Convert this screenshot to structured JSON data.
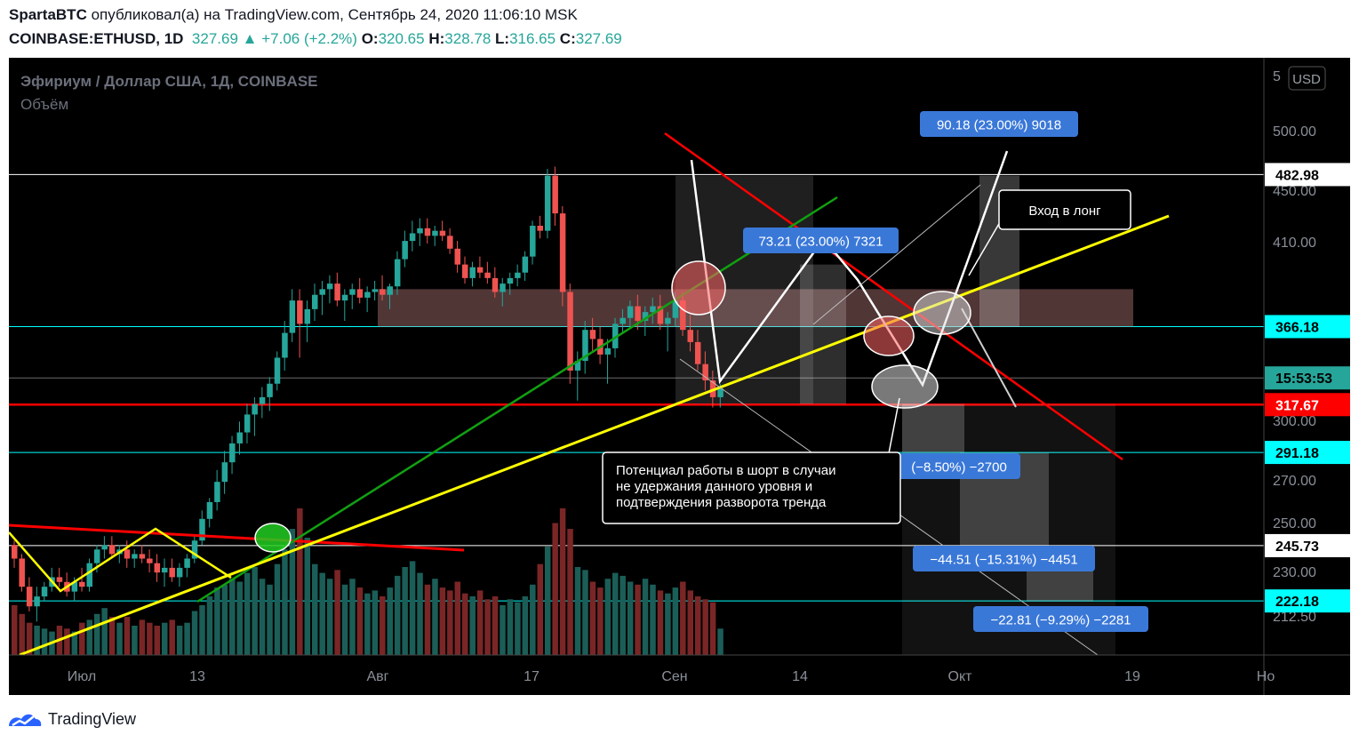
{
  "header": {
    "author": "SpartaBTC",
    "published_text": "опубликовал(а) на TradingView.com, Сентябрь 24, 2020 11:06:10 MSK",
    "symbol": "COINBASE:ETHUSD, 1D",
    "last": "327.69",
    "change_arrow": "▲",
    "change": "+7.06 (+2.2%)",
    "open_label": "O:",
    "open": "320.65",
    "high_label": "H:",
    "high": "328.78",
    "low_label": "L:",
    "low": "316.65",
    "close_label": "C:",
    "close": "327.69"
  },
  "chart_data": {
    "type": "candlestick",
    "title": "Эфириум / Доллар США, 1Д, COINBASE",
    "subtitle": "Объём",
    "currency_button": "USD",
    "y_scale": "log",
    "ylim": [
      202,
      560
    ],
    "y_ticks": [
      "5",
      "500.00",
      "450.00",
      "410.00",
      "300.00",
      "270.00",
      "250.00",
      "230.00",
      "212.50"
    ],
    "x_ticks": [
      "Июл",
      "13",
      "Авг",
      "17",
      "Сен",
      "14",
      "Окт",
      "19",
      "Но"
    ],
    "price_labels": [
      {
        "text": "482.98",
        "value": 482.98,
        "bg": "#ffffff",
        "fg": "#000000"
      },
      {
        "text": "366.18",
        "value": 366.18,
        "bg": "#00ffff",
        "fg": "#000000"
      },
      {
        "text": "15:53:53",
        "value": 333.5,
        "bg": "#26a69a",
        "fg": "#000000"
      },
      {
        "text": "317.67",
        "value": 317.67,
        "bg": "#ff0000",
        "fg": "#ffffff"
      },
      {
        "text": "291.18",
        "value": 291.18,
        "bg": "#00ffff",
        "fg": "#000000"
      },
      {
        "text": "245.73",
        "value": 245.73,
        "bg": "#ffffff",
        "fg": "#000000"
      },
      {
        "text": "222.18",
        "value": 222.18,
        "bg": "#00ffff",
        "fg": "#000000"
      }
    ],
    "horizontal_levels": [
      482.98,
      366.18,
      333.5,
      317.67,
      291.18,
      245.73,
      222.18
    ],
    "level_colors": [
      "#ffffff",
      "#00ffff",
      "#6b6b6b",
      "#ff0000",
      "#00ffff",
      "#ffffff",
      "#00ffff"
    ],
    "candles": [
      [
        246,
        248,
        236,
        240
      ],
      [
        240,
        242,
        226,
        228
      ],
      [
        228,
        232,
        218,
        220
      ],
      [
        220,
        228,
        214,
        224
      ],
      [
        224,
        230,
        222,
        228
      ],
      [
        228,
        236,
        226,
        232
      ],
      [
        232,
        236,
        228,
        230
      ],
      [
        230,
        234,
        224,
        226
      ],
      [
        226,
        232,
        222,
        230
      ],
      [
        230,
        236,
        226,
        228
      ],
      [
        228,
        240,
        226,
        238
      ],
      [
        238,
        246,
        234,
        244
      ],
      [
        244,
        250,
        240,
        246
      ],
      [
        246,
        250,
        240,
        242
      ],
      [
        242,
        246,
        238,
        244
      ],
      [
        244,
        248,
        236,
        240
      ],
      [
        240,
        244,
        236,
        242
      ],
      [
        242,
        246,
        238,
        240
      ],
      [
        240,
        244,
        234,
        238
      ],
      [
        238,
        242,
        230,
        234
      ],
      [
        234,
        240,
        228,
        236
      ],
      [
        236,
        240,
        230,
        232
      ],
      [
        232,
        238,
        228,
        236
      ],
      [
        236,
        242,
        232,
        240
      ],
      [
        240,
        250,
        238,
        248
      ],
      [
        248,
        262,
        246,
        258
      ],
      [
        258,
        268,
        254,
        266
      ],
      [
        266,
        282,
        262,
        276
      ],
      [
        276,
        292,
        270,
        286
      ],
      [
        286,
        300,
        280,
        296
      ],
      [
        296,
        308,
        290,
        302
      ],
      [
        302,
        318,
        296,
        312
      ],
      [
        312,
        322,
        300,
        318
      ],
      [
        318,
        328,
        310,
        322
      ],
      [
        322,
        334,
        314,
        330
      ],
      [
        330,
        350,
        326,
        346
      ],
      [
        346,
        370,
        338,
        362
      ],
      [
        362,
        392,
        356,
        384
      ],
      [
        384,
        392,
        346,
        368
      ],
      [
        368,
        384,
        356,
        378
      ],
      [
        378,
        396,
        370,
        388
      ],
      [
        388,
        398,
        374,
        392
      ],
      [
        392,
        402,
        382,
        396
      ],
      [
        396,
        404,
        380,
        384
      ],
      [
        384,
        392,
        370,
        388
      ],
      [
        388,
        396,
        378,
        392
      ],
      [
        392,
        400,
        382,
        386
      ],
      [
        386,
        394,
        376,
        390
      ],
      [
        390,
        398,
        384,
        392
      ],
      [
        392,
        402,
        384,
        388
      ],
      [
        388,
        396,
        378,
        394
      ],
      [
        394,
        420,
        388,
        414
      ],
      [
        414,
        436,
        408,
        428
      ],
      [
        428,
        444,
        420,
        434
      ],
      [
        434,
        446,
        424,
        438
      ],
      [
        438,
        446,
        426,
        432
      ],
      [
        432,
        440,
        424,
        436
      ],
      [
        436,
        444,
        428,
        432
      ],
      [
        432,
        438,
        418,
        422
      ],
      [
        422,
        428,
        404,
        410
      ],
      [
        410,
        416,
        396,
        400
      ],
      [
        400,
        412,
        394,
        408
      ],
      [
        408,
        416,
        400,
        404
      ],
      [
        404,
        412,
        396,
        400
      ],
      [
        400,
        408,
        386,
        390
      ],
      [
        390,
        400,
        380,
        396
      ],
      [
        396,
        404,
        388,
        400
      ],
      [
        400,
        410,
        394,
        404
      ],
      [
        404,
        420,
        398,
        416
      ],
      [
        416,
        444,
        410,
        440
      ],
      [
        440,
        448,
        430,
        436
      ],
      [
        436,
        488,
        430,
        482
      ],
      [
        482,
        490,
        440,
        450
      ],
      [
        450,
        456,
        380,
        390
      ],
      [
        390,
        396,
        330,
        338
      ],
      [
        338,
        350,
        320,
        344
      ],
      [
        344,
        370,
        336,
        364
      ],
      [
        364,
        372,
        350,
        358
      ],
      [
        358,
        366,
        342,
        348
      ],
      [
        348,
        358,
        330,
        352
      ],
      [
        352,
        372,
        346,
        368
      ],
      [
        368,
        378,
        362,
        372
      ],
      [
        372,
        384,
        366,
        380
      ],
      [
        380,
        388,
        364,
        370
      ],
      [
        370,
        380,
        360,
        376
      ],
      [
        376,
        386,
        368,
        380
      ],
      [
        380,
        388,
        364,
        368
      ],
      [
        368,
        376,
        350,
        372
      ],
      [
        372,
        390,
        366,
        384
      ],
      [
        384,
        390,
        360,
        364
      ],
      [
        364,
        374,
        350,
        356
      ],
      [
        356,
        364,
        338,
        342
      ],
      [
        342,
        350,
        326,
        332
      ],
      [
        332,
        338,
        316,
        322
      ],
      [
        322,
        330,
        316,
        327
      ]
    ],
    "volumes": [
      34,
      28,
      22,
      20,
      18,
      16,
      20,
      18,
      16,
      22,
      24,
      28,
      32,
      26,
      22,
      26,
      20,
      24,
      22,
      20,
      22,
      24,
      20,
      22,
      30,
      34,
      40,
      46,
      48,
      52,
      50,
      56,
      60,
      52,
      48,
      62,
      72,
      86,
      100,
      80,
      62,
      56,
      52,
      58,
      48,
      52,
      46,
      42,
      44,
      40,
      46,
      54,
      60,
      64,
      56,
      48,
      52,
      46,
      44,
      50,
      42,
      40,
      44,
      38,
      40,
      34,
      38,
      36,
      40,
      48,
      62,
      74,
      90,
      100,
      86,
      60,
      58,
      50,
      46,
      52,
      56,
      54,
      50,
      48,
      52,
      48,
      44,
      42,
      46,
      50,
      44,
      40,
      38,
      36,
      18
    ],
    "annotations": [
      {
        "text": "90.18 (23.00%) 9018"
      },
      {
        "text": "73.21 (23.00%) 7321"
      },
      {
        "text": "(−8.50%) −2700"
      },
      {
        "text": "−44.51 (−15.31%) −4451"
      },
      {
        "text": "−22.81 (−9.29%) −2281"
      },
      {
        "text": "Вход в лонг"
      },
      {
        "text_lines": [
          "Потенциал работы в шорт в случаи",
          "не удержания данного уровня и",
          "подтверждения разворота тренда"
        ]
      }
    ],
    "colors": {
      "up": "#26a69a",
      "down": "#ef5350",
      "vol_up": "#1b5e57",
      "vol_down": "#7a2626",
      "trend_yellow": "#ffff00",
      "trend_red": "#ff0000",
      "trend_green": "#11a011",
      "label_blue": "#2962ff"
    }
  },
  "branding": {
    "name": "TradingView"
  }
}
